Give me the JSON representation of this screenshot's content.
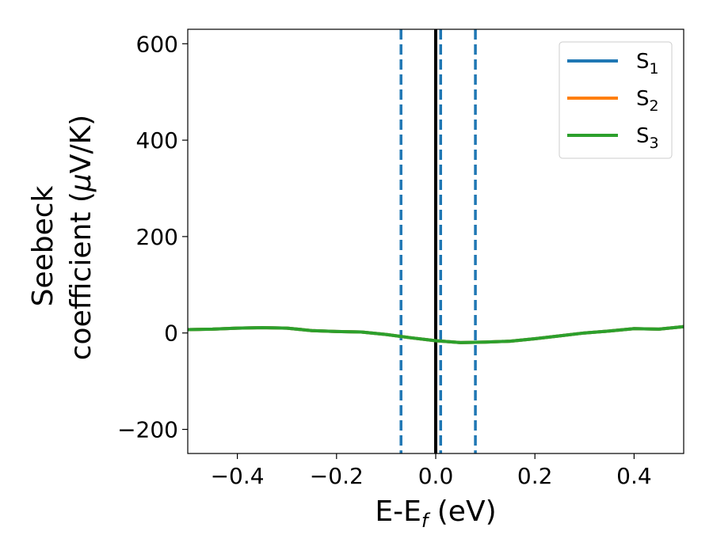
{
  "chart_data": {
    "type": "line",
    "xlabel": "E-E",
    "xlabel_sub": "f",
    "xlabel_unit": " (eV)",
    "ylabel_line1": "Seebeck",
    "ylabel_line2": "coefficient  (",
    "ylabel_mu": "μ",
    "ylabel_line2_end": "V/K)",
    "xlim": [
      -0.5,
      0.5
    ],
    "ylim": [
      -250,
      630
    ],
    "xticks": [
      -0.4,
      -0.2,
      0.0,
      0.2,
      0.4
    ],
    "xtick_labels": [
      "−0.4",
      "−0.2",
      "0.0",
      "0.2",
      "0.4"
    ],
    "yticks": [
      -200,
      0,
      200,
      400,
      600
    ],
    "ytick_labels": [
      "−200",
      "0",
      "200",
      "400",
      "600"
    ],
    "grid": false,
    "legend_placement": "top-right",
    "vlines": [
      {
        "x": 0.0,
        "color": "#000000",
        "style": "solid"
      },
      {
        "x": -0.07,
        "color": "#1f77b4",
        "style": "dashed"
      },
      {
        "x": 0.01,
        "color": "#1f77b4",
        "style": "dashed"
      },
      {
        "x": 0.08,
        "color": "#1f77b4",
        "style": "dashed"
      }
    ],
    "x": [
      -0.5,
      -0.45,
      -0.4,
      -0.35,
      -0.3,
      -0.25,
      -0.2,
      -0.15,
      -0.1,
      -0.05,
      0.0,
      0.05,
      0.1,
      0.15,
      0.2,
      0.25,
      0.3,
      0.35,
      0.4,
      0.45,
      0.5
    ],
    "series": [
      {
        "name": "S",
        "sub": "1",
        "color": "#1f77b4",
        "values": [
          7,
          8,
          10,
          11,
          10,
          5,
          3,
          2,
          -3,
          -10,
          -16,
          -20,
          -19,
          -17,
          -12,
          -6,
          0,
          4,
          9,
          8,
          13
        ]
      },
      {
        "name": "S",
        "sub": "2",
        "color": "#ff7f0e",
        "values": [
          7,
          8,
          10,
          11,
          10,
          5,
          3,
          2,
          -3,
          -10,
          -16,
          -20,
          -19,
          -17,
          -12,
          -6,
          0,
          4,
          9,
          8,
          13
        ]
      },
      {
        "name": "S",
        "sub": "3",
        "color": "#2ca02c",
        "values": [
          7,
          8,
          10,
          11,
          10,
          5,
          3,
          2,
          -3,
          -10,
          -16,
          -20,
          -19,
          -17,
          -12,
          -6,
          0,
          4,
          9,
          8,
          13
        ]
      }
    ]
  }
}
